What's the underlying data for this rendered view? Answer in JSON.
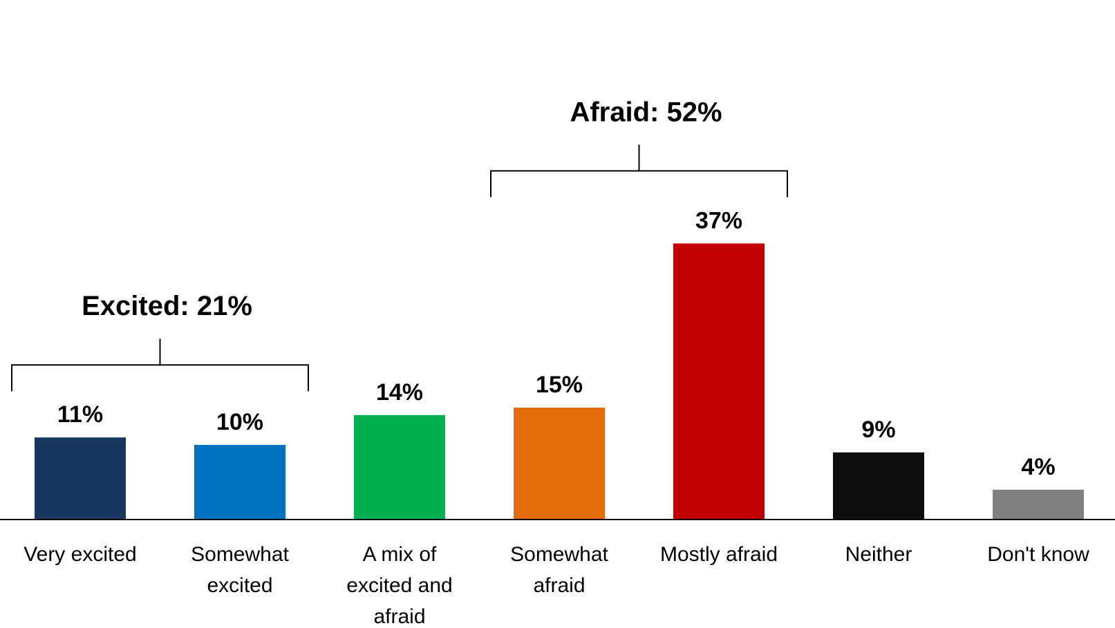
{
  "chart_data": {
    "type": "bar",
    "categories": [
      [
        "Very excited"
      ],
      [
        "Somewhat",
        "excited"
      ],
      [
        "A mix of",
        "excited and",
        "afraid"
      ],
      [
        "Somewhat",
        "afraid"
      ],
      [
        "Mostly afraid"
      ],
      [
        "Neither"
      ],
      [
        "Don't know"
      ]
    ],
    "values": [
      11,
      10,
      14,
      15,
      37,
      9,
      4
    ],
    "value_labels": [
      "11%",
      "10%",
      "14%",
      "15%",
      "37%",
      "9%",
      "4%"
    ],
    "colors": [
      "#17375e",
      "#0070c0",
      "#00b050",
      "#e46c0a",
      "#c00000",
      "#0d0d0d",
      "#808080"
    ],
    "ylim": [
      0,
      40
    ],
    "grid": false,
    "legend": "none",
    "groups": [
      {
        "label": "Excited: 21%",
        "start_index": 0,
        "end_index": 1
      },
      {
        "label": "Afraid: 52%",
        "start_index": 3,
        "end_index": 4
      }
    ]
  }
}
